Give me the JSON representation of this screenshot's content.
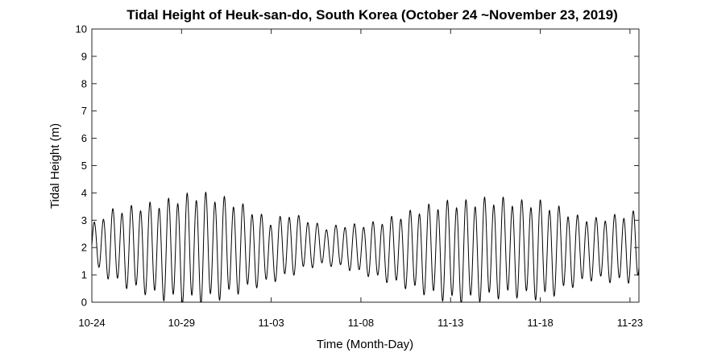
{
  "chart_data": {
    "type": "line",
    "title": "Tidal Height of Heuk-san-do, South Korea (October 24 ~November 23, 2019)",
    "xlabel": "Time (Month-Day)",
    "ylabel": "Tidal Height (m)",
    "ylim": [
      0,
      10
    ],
    "yticks": [
      "0",
      "1",
      "2",
      "3",
      "4",
      "5",
      "6",
      "7",
      "8",
      "9",
      "10"
    ],
    "xlim_days": [
      0,
      30.5
    ],
    "xticks": [
      {
        "label": "10-24",
        "day": 0
      },
      {
        "label": "10-29",
        "day": 5
      },
      {
        "label": "11-03",
        "day": 10
      },
      {
        "label": "11-08",
        "day": 15
      },
      {
        "label": "11-13",
        "day": 20
      },
      {
        "label": "11-18",
        "day": 25
      },
      {
        "label": "11-23",
        "day": 30
      }
    ],
    "grid": false,
    "legend": "none",
    "line_color": "#000000",
    "series": [
      {
        "x_day": [
          0,
          1,
          2,
          3,
          4,
          5,
          6,
          7,
          8,
          9,
          10,
          11,
          12,
          13,
          14,
          15,
          16,
          17,
          18,
          19,
          20,
          21,
          22,
          23,
          24,
          25,
          26,
          27,
          28,
          29,
          30,
          30.5
        ],
        "high_m": [
          2.8,
          3.3,
          3.4,
          3.5,
          3.6,
          3.8,
          3.9,
          3.8,
          3.6,
          3.3,
          2.9,
          3.2,
          3.0,
          2.7,
          2.8,
          2.8,
          2.9,
          3.1,
          3.3,
          3.5,
          3.6,
          3.6,
          3.7,
          3.7,
          3.6,
          3.6,
          3.4,
          3.1,
          3.0,
          3.1,
          3.2,
          3.3
        ],
        "low_m": [
          1.4,
          0.9,
          0.6,
          0.4,
          0.2,
          0.1,
          0.1,
          0.2,
          0.4,
          0.6,
          0.8,
          1.0,
          1.3,
          1.4,
          1.3,
          1.1,
          0.9,
          0.7,
          0.5,
          0.3,
          0.1,
          0.1,
          0.2,
          0.3,
          0.3,
          0.2,
          0.4,
          0.7,
          0.9,
          0.8,
          0.8,
          0.9
        ],
        "cycles_per_day": 1.93
      }
    ]
  }
}
